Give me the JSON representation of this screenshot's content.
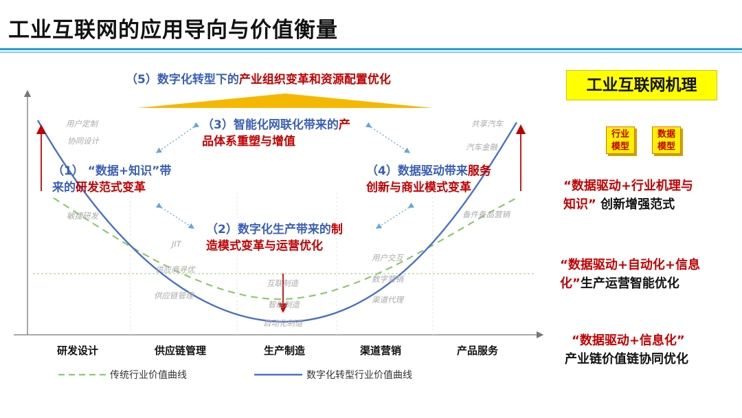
{
  "title": "工业互联网的应用导向与价值衡量",
  "top_label": {
    "prefix": "（5）数字化转型下的",
    "highlight": "产业组织变革和资源配置优化"
  },
  "stage3": {
    "line1_prefix": "（3）智能化网联化带来的",
    "line1_red": "产",
    "line2": "品体系重塑与增值"
  },
  "stage1": {
    "line1": "（1） “数据+知识”带",
    "line2_prefix": "来的",
    "line2_red": "研发范式变革"
  },
  "stage4": {
    "line1_prefix": "（4）数据驱动带来",
    "line1_red": "服务",
    "line2": "创新与商业模式变革"
  },
  "stage2": {
    "line1_prefix": "（2）数字化生产带来的",
    "line1_red": "制",
    "line2": "造模式变革与运营优化"
  },
  "faint_labels": {
    "user_custom": "用户定制",
    "collab_design": "协同设计",
    "agile_rd": "敏捷研发",
    "jit": "JIT",
    "supply_opt": "供应商寻优",
    "supply_mgmt": "供应链管理",
    "iot_mfg": "互联制造",
    "smart_mfg": "智能制造",
    "auto_mfg": "自动化制造",
    "user_interact": "用户交互",
    "digital_marketing": "数字营销",
    "channel_agent": "渠道代理",
    "car_sharing": "共享汽车",
    "auto_finance": "汽车金融",
    "spare_parts": "备件备品营销"
  },
  "categories": [
    "研发设计",
    "供应链管理",
    "生产制造",
    "渠道营销",
    "产品服务"
  ],
  "legend": {
    "traditional": "传统行业价值曲线",
    "digital": "数字化转型行业价值曲线"
  },
  "right_panel": {
    "mechanism": "工业互联网机理",
    "model1": [
      "行业",
      "模型"
    ],
    "model2": [
      "数据",
      "模型"
    ],
    "item1": {
      "quote1_red": "“数据驱动+行业机理与",
      "quote2_red": "知识”",
      "rest": " 创新增强范式"
    },
    "item2": {
      "quote1_red": "“数据驱动+自动化+信息",
      "quote2_red": "化”",
      "rest": "生产运营智能优化"
    },
    "item3": {
      "quote1_red": "“数据驱动+信息化”",
      "line2": "产业链价值链协同优化"
    }
  },
  "colors": {
    "accent_blue": "#3a5fb4",
    "accent_red": "#c00000",
    "traditional_curve": "#8cc86e",
    "digital_curve": "#4a70c8",
    "triangle": "#f5b800",
    "title_rule": "#1ea0e0"
  }
}
